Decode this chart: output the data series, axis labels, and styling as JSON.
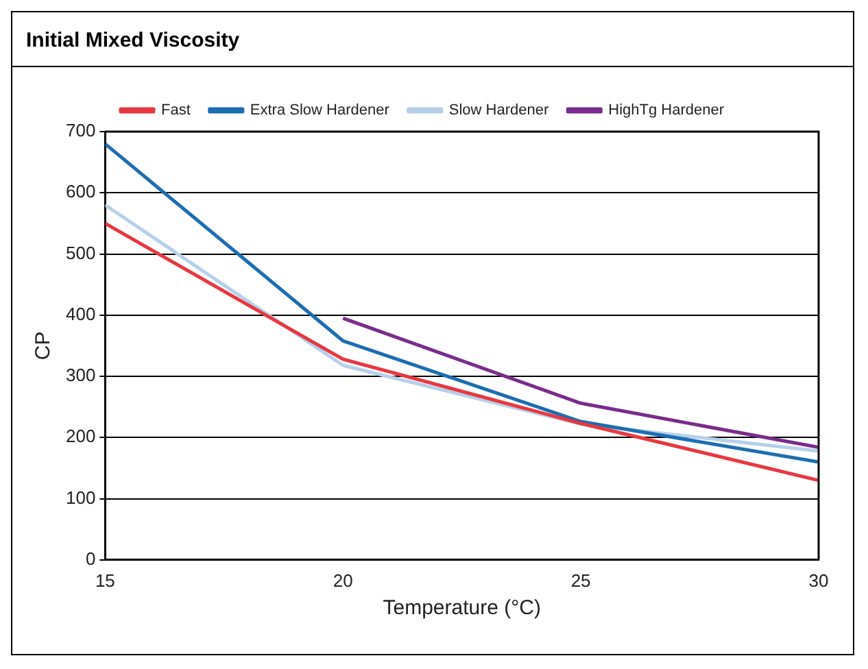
{
  "chart_data": {
    "type": "line",
    "title": "Initial Mixed Viscosity",
    "xlabel": "Temperature (°C)",
    "ylabel": "CP",
    "x": [
      15,
      20,
      25,
      30
    ],
    "series": [
      {
        "name": "Fast",
        "color": "#e8383d",
        "values": [
          550,
          328,
          223,
          130
        ]
      },
      {
        "name": "Extra Slow Hardener",
        "color": "#1a6db3",
        "values": [
          680,
          358,
          226,
          160
        ]
      },
      {
        "name": "Slow Hardener",
        "color": "#b4d0ec",
        "values": [
          580,
          318,
          222,
          178
        ]
      },
      {
        "name": "HighTg Hardener",
        "color": "#7b2a8e",
        "values": [
          null,
          395,
          256,
          184
        ]
      }
    ],
    "xlim": [
      15,
      30
    ],
    "xticks": [
      15,
      20,
      25,
      30
    ],
    "ylim": [
      0,
      700
    ],
    "yticks": [
      0,
      100,
      200,
      300,
      400,
      500,
      600,
      700
    ],
    "grid": "y",
    "legend": "top",
    "marker": "none",
    "line_style": "solid"
  }
}
